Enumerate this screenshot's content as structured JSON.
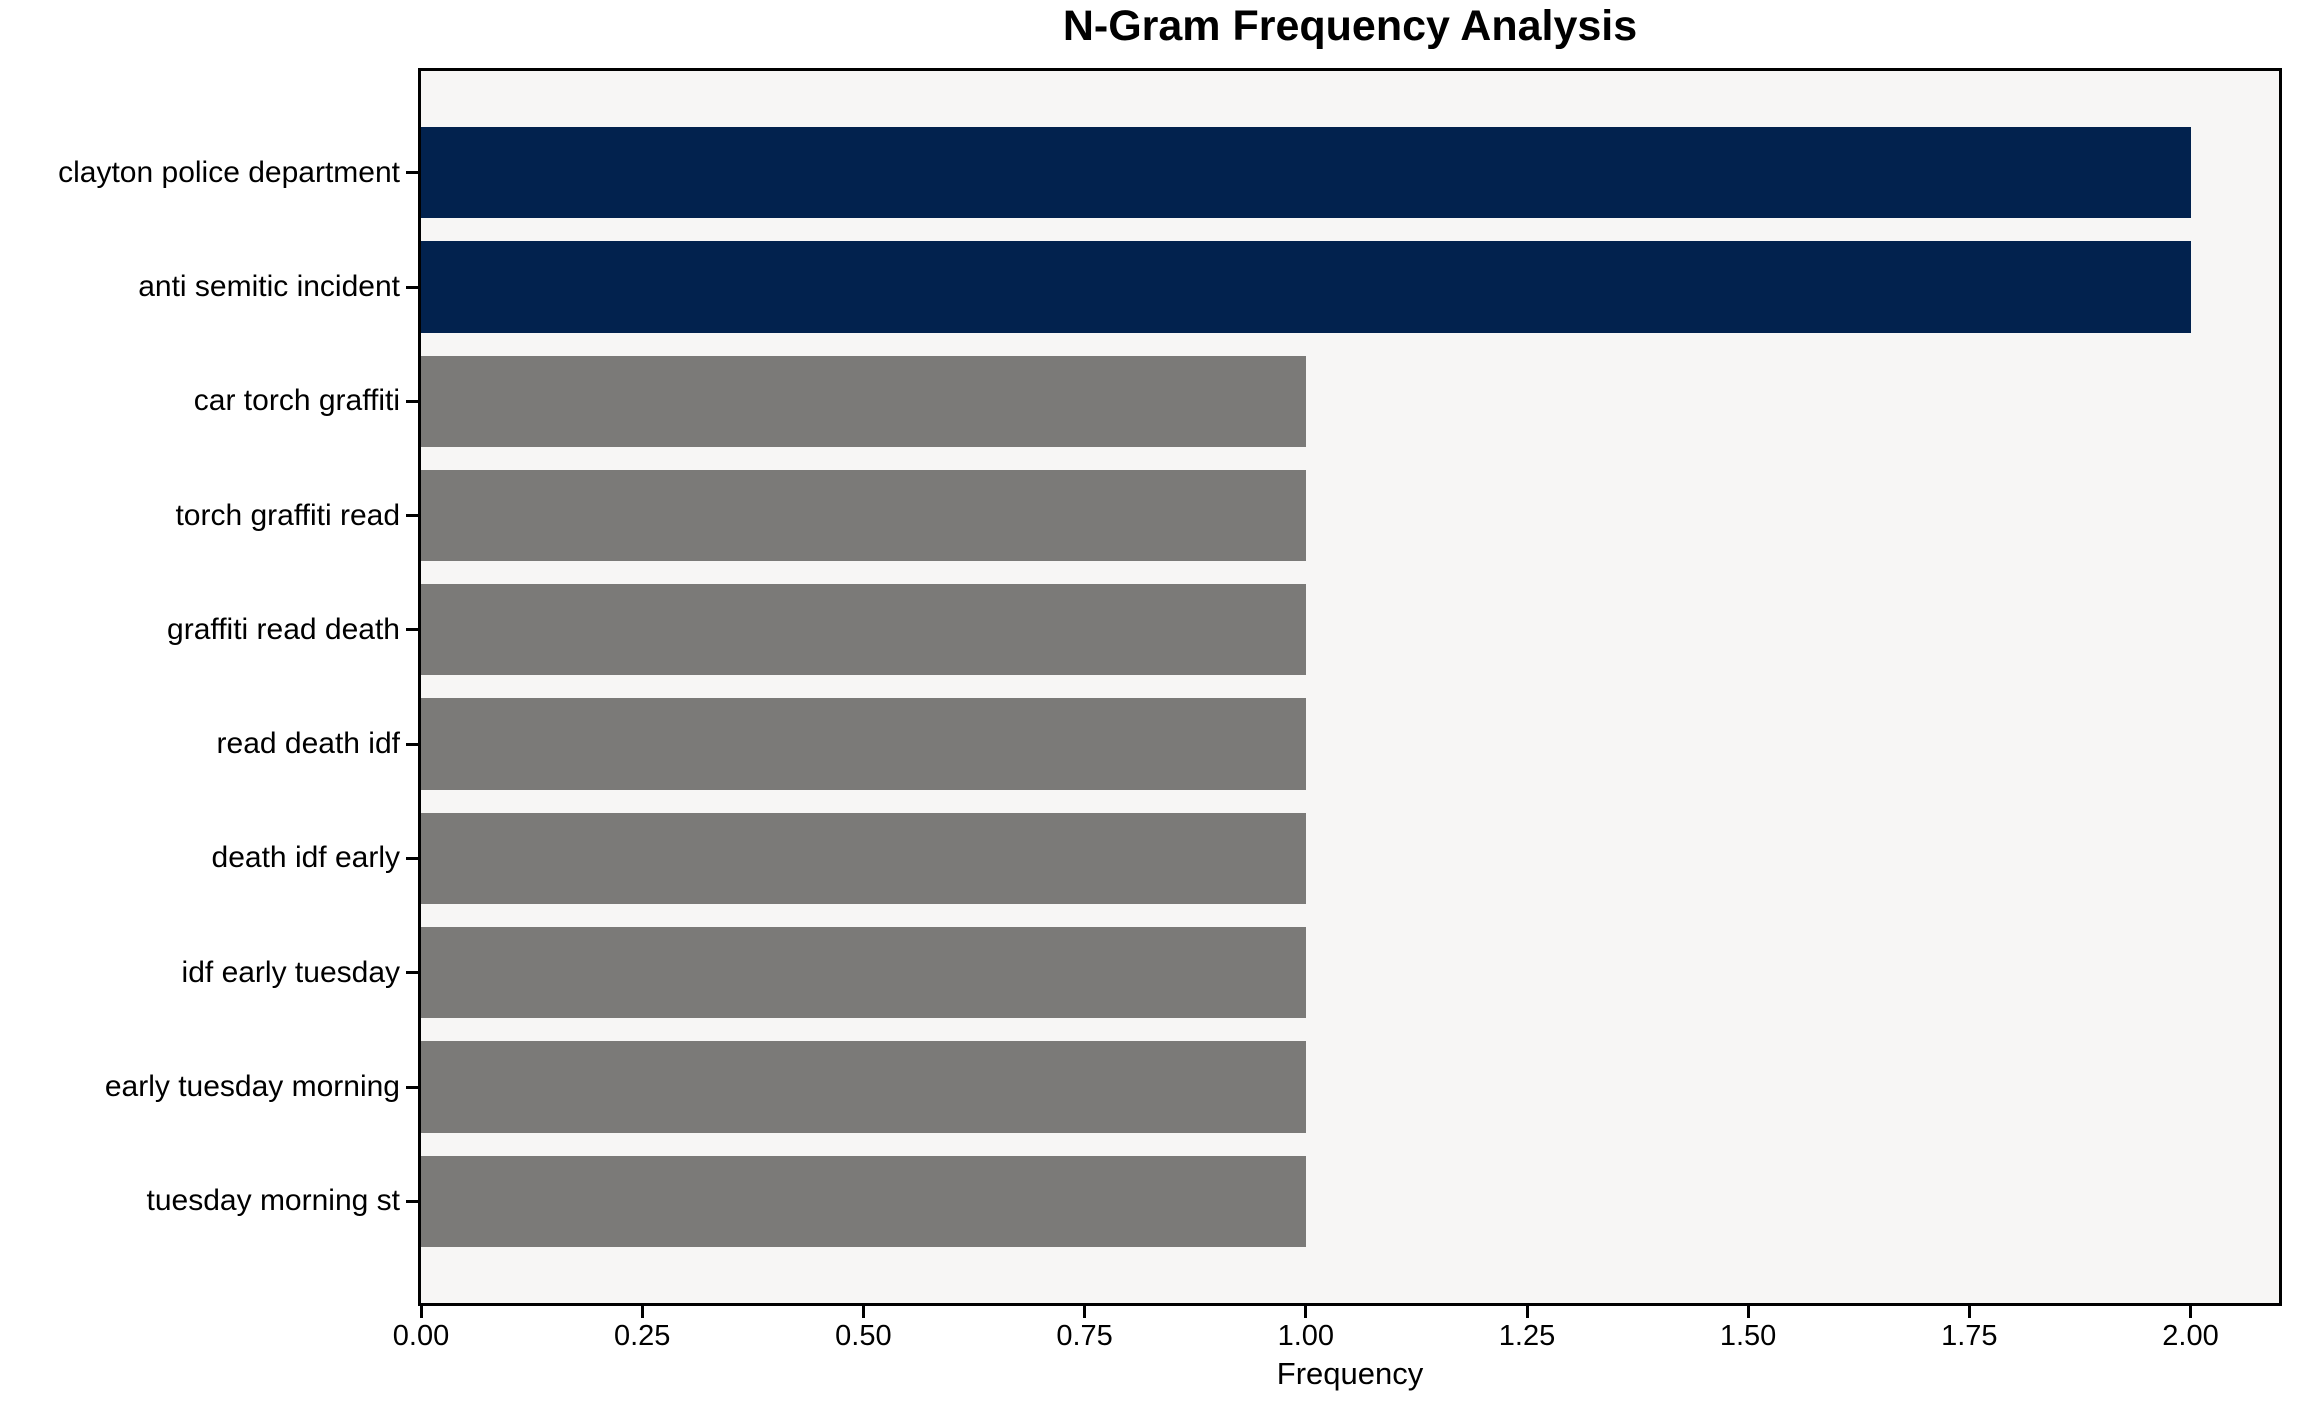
{
  "chart_data": {
    "type": "bar",
    "orientation": "horizontal",
    "title": "N-Gram Frequency Analysis",
    "xlabel": "Frequency",
    "ylabel": "",
    "categories": [
      "clayton police department",
      "anti semitic incident",
      "car torch graffiti",
      "torch graffiti read",
      "graffiti read death",
      "read death idf",
      "death idf early",
      "idf early tuesday",
      "early tuesday morning",
      "tuesday morning st"
    ],
    "values": [
      2,
      2,
      1,
      1,
      1,
      1,
      1,
      1,
      1,
      1
    ],
    "bar_colors": [
      "#02224e",
      "#02224e",
      "#7b7a78",
      "#7b7a78",
      "#7b7a78",
      "#7b7a78",
      "#7b7a78",
      "#7b7a78",
      "#7b7a78",
      "#7b7a78"
    ],
    "xlim": [
      0,
      2.1
    ],
    "x_ticks": [
      0,
      0.25,
      0.5,
      0.75,
      1.0,
      1.25,
      1.5,
      1.75,
      2.0
    ],
    "x_tick_labels": [
      "0.00",
      "0.25",
      "0.50",
      "0.75",
      "1.00",
      "1.25",
      "1.50",
      "1.75",
      "2.00"
    ],
    "bar_height_fraction": 0.8,
    "grid": false,
    "legend_position": "none",
    "colors": {
      "highlight": "#02224e",
      "default": "#7b7a78",
      "plot_bg": "#f7f6f5",
      "figure_bg": "#ffffff",
      "spine": "#000000",
      "text": "#000000"
    }
  }
}
